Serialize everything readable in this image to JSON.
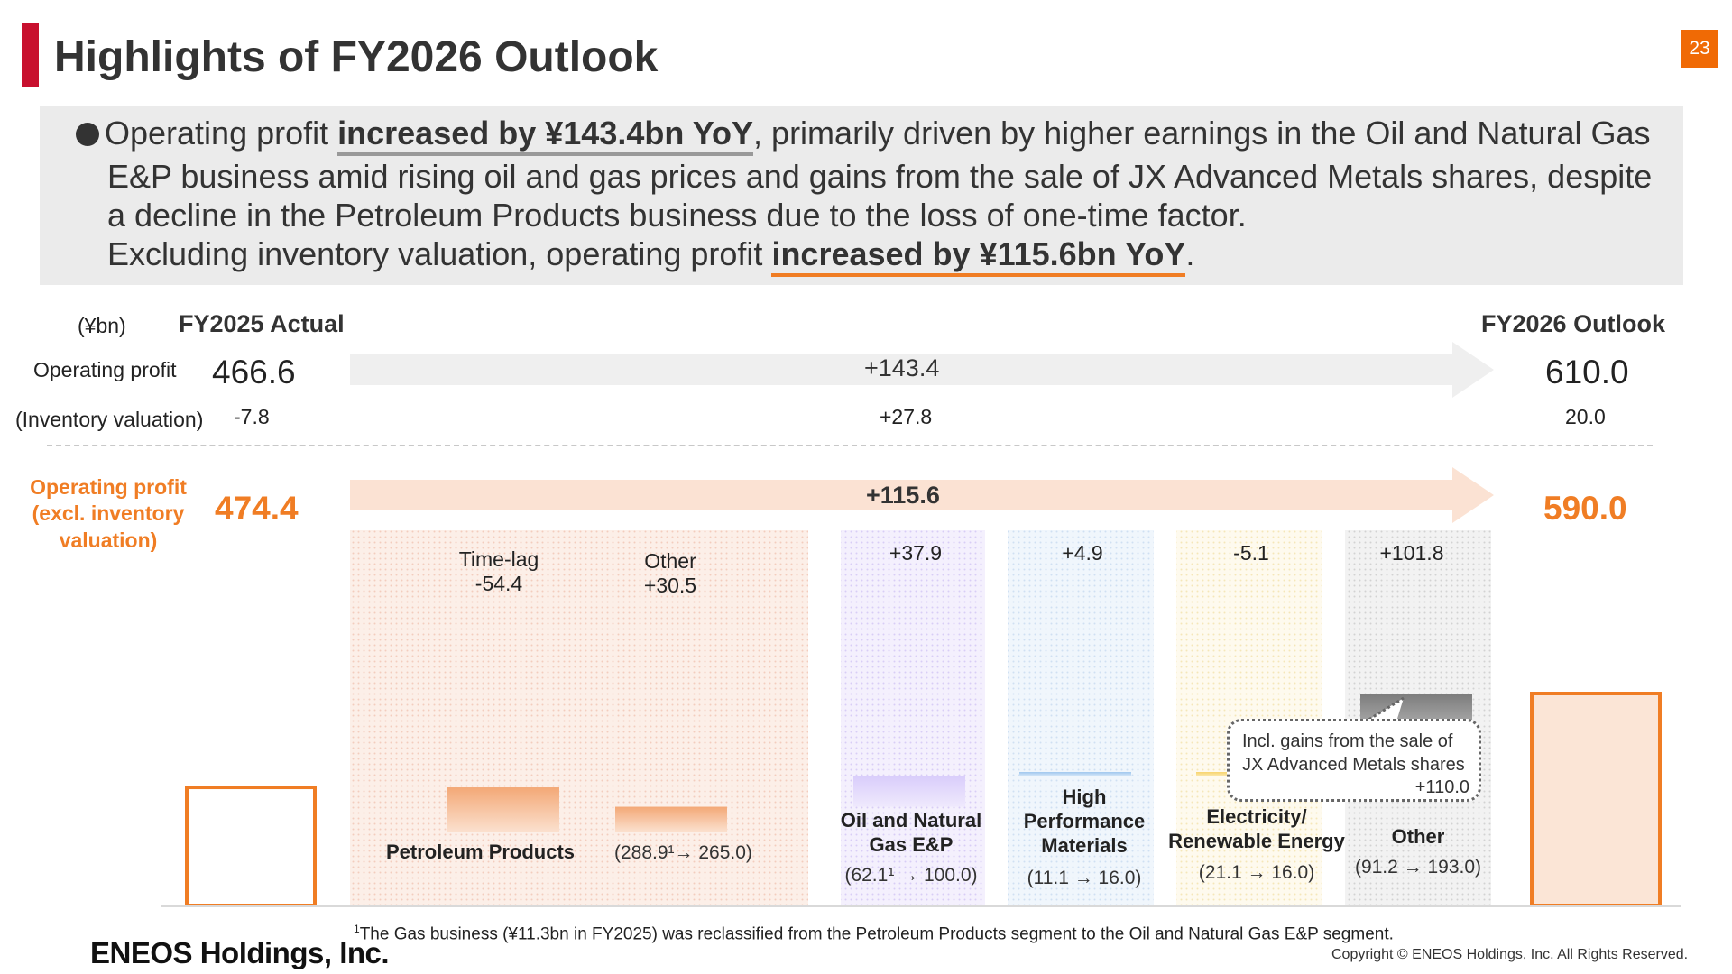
{
  "header": {
    "title": "Highlights of FY2026 Outlook",
    "page_number": "23",
    "accent_color": "#c8102e",
    "page_badge_color": "#f06a05"
  },
  "summary": {
    "line1_pre": "Operating profit ",
    "line1_em": "increased by ¥143.4bn YoY",
    "line1_post": ", primarily driven by higher earnings in the Oil and Natural Gas",
    "line2": "E&P business amid rising oil and gas prices and gains from the sale of JX Advanced Metals shares, despite",
    "line3": "a decline in the Petroleum Products business due to the loss of one-time factor.",
    "line4_pre": "Excluding inventory valuation, operating profit ",
    "line4_em": "increased by ¥115.6bn YoY",
    "line4_post": "."
  },
  "table": {
    "unit": "(¥bn)",
    "col_actual": "FY2025 Actual",
    "col_outlook": "FY2026 Outlook",
    "row_op_label": "Operating profit",
    "row_op_actual": "466.6",
    "row_op_change": "+143.4",
    "row_op_outlook": "610.0",
    "row_inv_label": "(Inventory valuation)",
    "row_inv_actual": "-7.8",
    "row_inv_change": "+27.8",
    "row_inv_outlook": "20.0",
    "row_excl_label_1": "Operating profit",
    "row_excl_label_2": "(excl. inventory",
    "row_excl_label_3": "valuation)",
    "row_excl_actual": "474.4",
    "row_excl_change": "+115.6",
    "row_excl_outlook": "590.0"
  },
  "chart_data": {
    "type": "bar",
    "subtype": "waterfall",
    "unit": "¥bn",
    "start": {
      "label": "FY2025 Actual",
      "value": 474.4
    },
    "end": {
      "label": "FY2026 Outlook",
      "value": 590.0
    },
    "steps": [
      {
        "segment": "Petroleum Products",
        "label": "Time-lag",
        "value": -54.4
      },
      {
        "segment": "Petroleum Products",
        "label": "Other",
        "value": 30.5
      },
      {
        "segment": "Oil and Natural Gas E&P",
        "label": "",
        "value": 37.9
      },
      {
        "segment": "High Performance Materials",
        "label": "",
        "value": 4.9
      },
      {
        "segment": "Electricity/ Renewable Energy",
        "label": "",
        "value": -5.1
      },
      {
        "segment": "Other",
        "label": "",
        "value": 101.8
      }
    ],
    "segments": [
      {
        "name": "Petroleum Products",
        "range": "(288.9¹→ 265.0)",
        "from": 288.9,
        "to": 265.0,
        "color": "#f7ddd2"
      },
      {
        "name": "Oil and Natural Gas E&P",
        "range": "(62.1¹ → 100.0)",
        "from": 62.1,
        "to": 100.0,
        "color": "#e4dcfb"
      },
      {
        "name": "High Performance Materials",
        "range": "(11.1 → 16.0)",
        "from": 11.1,
        "to": 16.0,
        "color": "#dcebf8"
      },
      {
        "name": "Electricity/ Renewable Energy",
        "range": "(21.1 → 16.0)",
        "from": 21.1,
        "to": 16.0,
        "color": "#fdf3d8"
      },
      {
        "name": "Other",
        "range": "(91.2 → 193.0)",
        "from": 91.2,
        "to": 193.0,
        "color": "#e6e6e6"
      }
    ],
    "value_labels": {
      "time_lag": [
        "Time-lag",
        "-54.4"
      ],
      "pp_other": [
        "Other",
        "+30.5"
      ],
      "ong": "+37.9",
      "hpm": "+4.9",
      "elec": "-5.1",
      "other": "+101.8"
    },
    "segment_labels": {
      "pp": "Petroleum Products",
      "ong": [
        "Oil and Natural",
        "Gas E&P"
      ],
      "hpm": [
        "High",
        "Performance",
        "Materials"
      ],
      "elec": [
        "Electricity/",
        "Renewable Energy"
      ],
      "other": "Other"
    },
    "callout": [
      "Incl. gains from the sale of",
      "JX Advanced Metals shares",
      "+110.0"
    ],
    "colors": {
      "orange": "#f07d24",
      "start_end_fill": "#fbe5d6"
    }
  },
  "footer": {
    "footnote_sup": "1",
    "footnote": "The Gas business (¥11.3bn in FY2025) was reclassified from the Petroleum Products segment to the Oil and Natural Gas E&P segment.",
    "logo": "ENEOS Holdings, Inc.",
    "copyright": "Copyright © ENEOS Holdings, Inc. All Rights Reserved."
  }
}
